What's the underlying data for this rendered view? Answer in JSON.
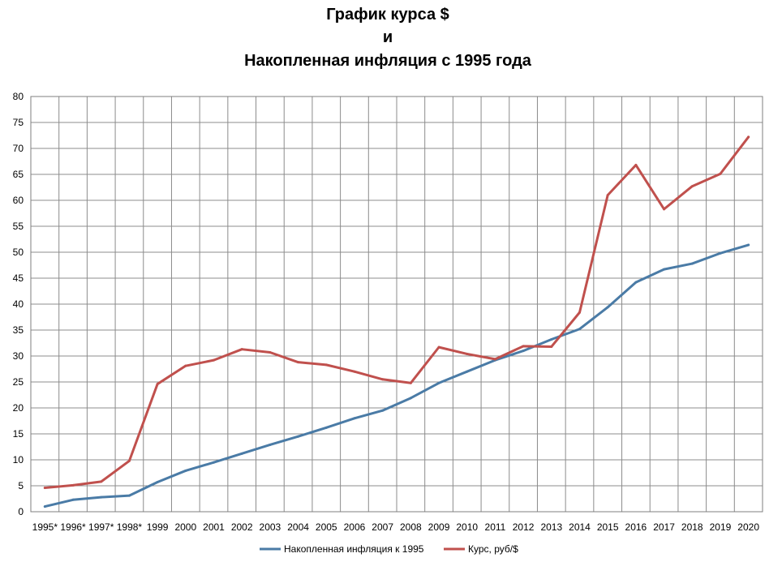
{
  "chart_data": {
    "type": "line",
    "title_lines": [
      "График курса $",
      "и",
      "Накопленная инфляция с 1995 года"
    ],
    "categories": [
      "1995*",
      "1996*",
      "1997*",
      "1998*",
      "1999",
      "2000",
      "2001",
      "2002",
      "2003",
      "2004",
      "2005",
      "2006",
      "2007",
      "2008",
      "2009",
      "2010",
      "2011",
      "2012",
      "2013",
      "2014",
      "2015",
      "2016",
      "2017",
      "2018",
      "2019",
      "2020"
    ],
    "ylim": [
      0,
      80
    ],
    "yticks": [
      0,
      5,
      10,
      15,
      20,
      25,
      30,
      35,
      40,
      45,
      50,
      55,
      60,
      65,
      70,
      75,
      80
    ],
    "grid": true,
    "legend_position": "bottom",
    "series": [
      {
        "name": "Накопленная инфляция  к 1995",
        "color": "#4a7ba6",
        "values": [
          1.0,
          2.3,
          2.8,
          3.1,
          5.7,
          7.9,
          9.5,
          11.2,
          12.9,
          14.5,
          16.2,
          18.0,
          19.5,
          21.9,
          24.8,
          27.0,
          29.2,
          31.0,
          33.2,
          35.2,
          39.4,
          44.2,
          46.7,
          47.8,
          49.8,
          51.4
        ]
      },
      {
        "name": "Курс, руб/$",
        "color": "#c0504d",
        "values": [
          4.6,
          5.1,
          5.8,
          9.8,
          24.6,
          28.1,
          29.2,
          31.3,
          30.7,
          28.8,
          28.3,
          27.0,
          25.5,
          24.8,
          31.7,
          30.4,
          29.4,
          31.9,
          31.8,
          38.4,
          61.0,
          66.8,
          58.3,
          62.7,
          65.1,
          72.2
        ]
      }
    ]
  }
}
